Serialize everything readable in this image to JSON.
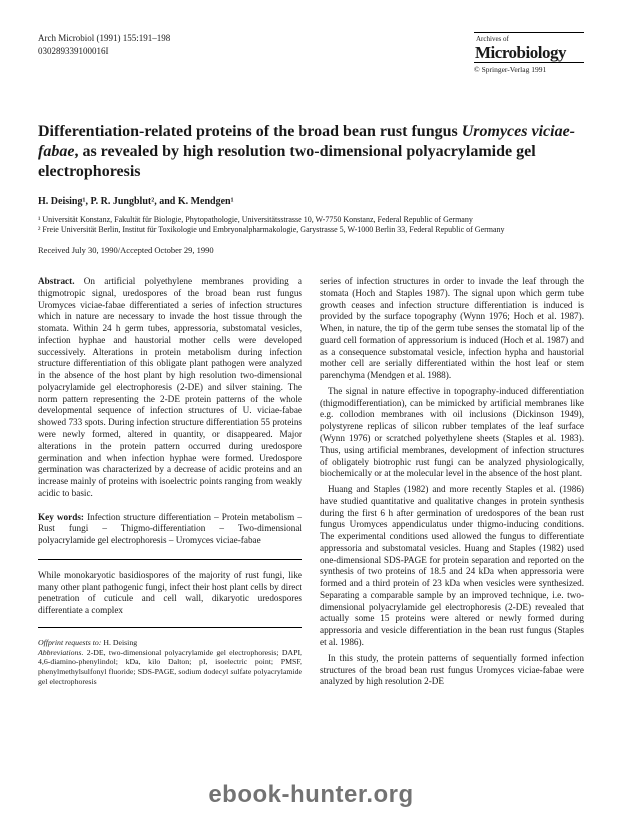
{
  "header": {
    "citation": "Arch Microbiol (1991) 155:191–198",
    "code": "030289339100016I",
    "archives_of": "Archives of",
    "journal": "Microbiology",
    "copyright": "© Springer-Verlag 1991"
  },
  "title_plain_pre": "Differentiation-related proteins of the broad bean rust fungus ",
  "title_italic": "Uromyces viciae-fabae",
  "title_plain_post": ", as revealed by high resolution two-dimensional polyacrylamide gel electrophoresis",
  "authors": "H. Deising¹, P. R. Jungblut², and K. Mendgen¹",
  "affil1": "¹ Universität Konstanz, Fakultät für Biologie, Phytopathologie, Universitätsstrasse 10, W-7750 Konstanz, Federal Republic of Germany",
  "affil2": "² Freie Universität Berlin, Institut für Toxikologie und Embryonalpharmakologie, Garystrasse 5, W-1000 Berlin 33, Federal Republic of Germany",
  "dates": "Received July 30, 1990/Accepted October 29, 1990",
  "abstract_label": "Abstract.",
  "abstract_text": " On artificial polyethylene membranes providing a thigmotropic signal, uredospores of the broad bean rust fungus Uromyces viciae-fabae differentiated a series of infection structures which in nature are necessary to invade the host tissue through the stomata. Within 24 h germ tubes, appressoria, substomatal vesicles, infection hyphae and haustorial mother cells were developed successively. Alterations in protein metabolism during infection structure differentiation of this obligate plant pathogen were analyzed in the absence of the host plant by high resolution two-dimensional polyacrylamide gel electrophoresis (2-DE) and silver staining. The norm pattern representing the 2-DE protein patterns of the whole developmental sequence of infection structures of U. viciae-fabae showed 733 spots. During infection structure differentiation 55 proteins were newly formed, altered in quantity, or disappeared. Major alterations in the protein pattern occurred during uredospore germination and when infection hyphae were formed. Uredospore germination was characterized by a decrease of acidic proteins and an increase mainly of proteins with isoelectric points ranging from weakly acidic to basic.",
  "keywords_label": "Key words:",
  "keywords_text": " Infection structure differentiation – Protein metabolism – Rust fungi – Thigmo-differentiation – Two-dimensional polyacrylamide gel electrophoresis – Uromyces viciae-fabae",
  "intro_text": "While monokaryotic basidiospores of the majority of rust fungi, like many other plant pathogenic fungi, infect their host plant cells by direct penetration of cuticule and cell wall, dikaryotic uredospores differentiate a complex",
  "offprint_label": "Offprint requests to:",
  "offprint_text": " H. Deising",
  "abbrev_label": "Abbreviations.",
  "abbrev_text": " 2-DE, two-dimensional polyacrylamide gel electrophoresis; DAPI, 4,6-diamino-phenylindol; kDa, kilo Dalton; pI, isoelectric point; PMSF, phenylmethylsulfonyl fluoride; SDS-PAGE, sodium dodecyl sulfate polyacrylamide gel electrophoresis",
  "col2_p1": "series of infection structures in order to invade the leaf through the stomata (Hoch and Staples 1987). The signal upon which germ tube growth ceases and infection structure differentiation is induced is provided by the surface topography (Wynn 1976; Hoch et al. 1987). When, in nature, the tip of the germ tube senses the stomatal lip of the guard cell formation of appressorium is induced (Hoch et al. 1987) and as a consequence substomatal vesicle, infection hypha and haustorial mother cell are serially differentiated within the host leaf or stem parenchyma (Mendgen et al. 1988).",
  "col2_p2": "The signal in nature effective in topography-induced differentiation (thigmodifferentiation), can be mimicked by artificial membranes like e.g. collodion membranes with oil inclusions (Dickinson 1949), polystyrene replicas of silicon rubber templates of the leaf surface (Wynn 1976) or scratched polyethylene sheets (Staples et al. 1983). Thus, using artificial membranes, development of infection structures of obligately biotrophic rust fungi can be analyzed physiologically, biochemically or at the molecular level in the absence of the host plant.",
  "col2_p3": "Huang and Staples (1982) and more recently Staples et al. (1986) have studied quantitative and qualitative changes in protein synthesis during the first 6 h after germination of uredospores of the bean rust fungus Uromyces appendiculatus under thigmo-inducing conditions. The experimental conditions used allowed the fungus to differentiate appressoria and substomatal vesicles. Huang and Staples (1982) used one-dimensional SDS-PAGE for protein separation and reported on the synthesis of two proteins of 18.5 and 24 kDa when appressoria were formed and a third protein of 23 kDa when vesicles were synthesized. Separating a comparable sample by an improved technique, i.e. two-dimensional polyacrylamide gel electrophoresis (2-DE) revealed that actually some 15 proteins were altered or newly formed during appressoria and vesicle differentiation in the bean rust fungus (Staples et al. 1986).",
  "col2_p4": "In this study, the protein patterns of sequentially formed infection structures of the broad bean rust fungus Uromyces viciae-fabae were analyzed by high resolution 2-DE",
  "watermark": "ebook-hunter.org"
}
